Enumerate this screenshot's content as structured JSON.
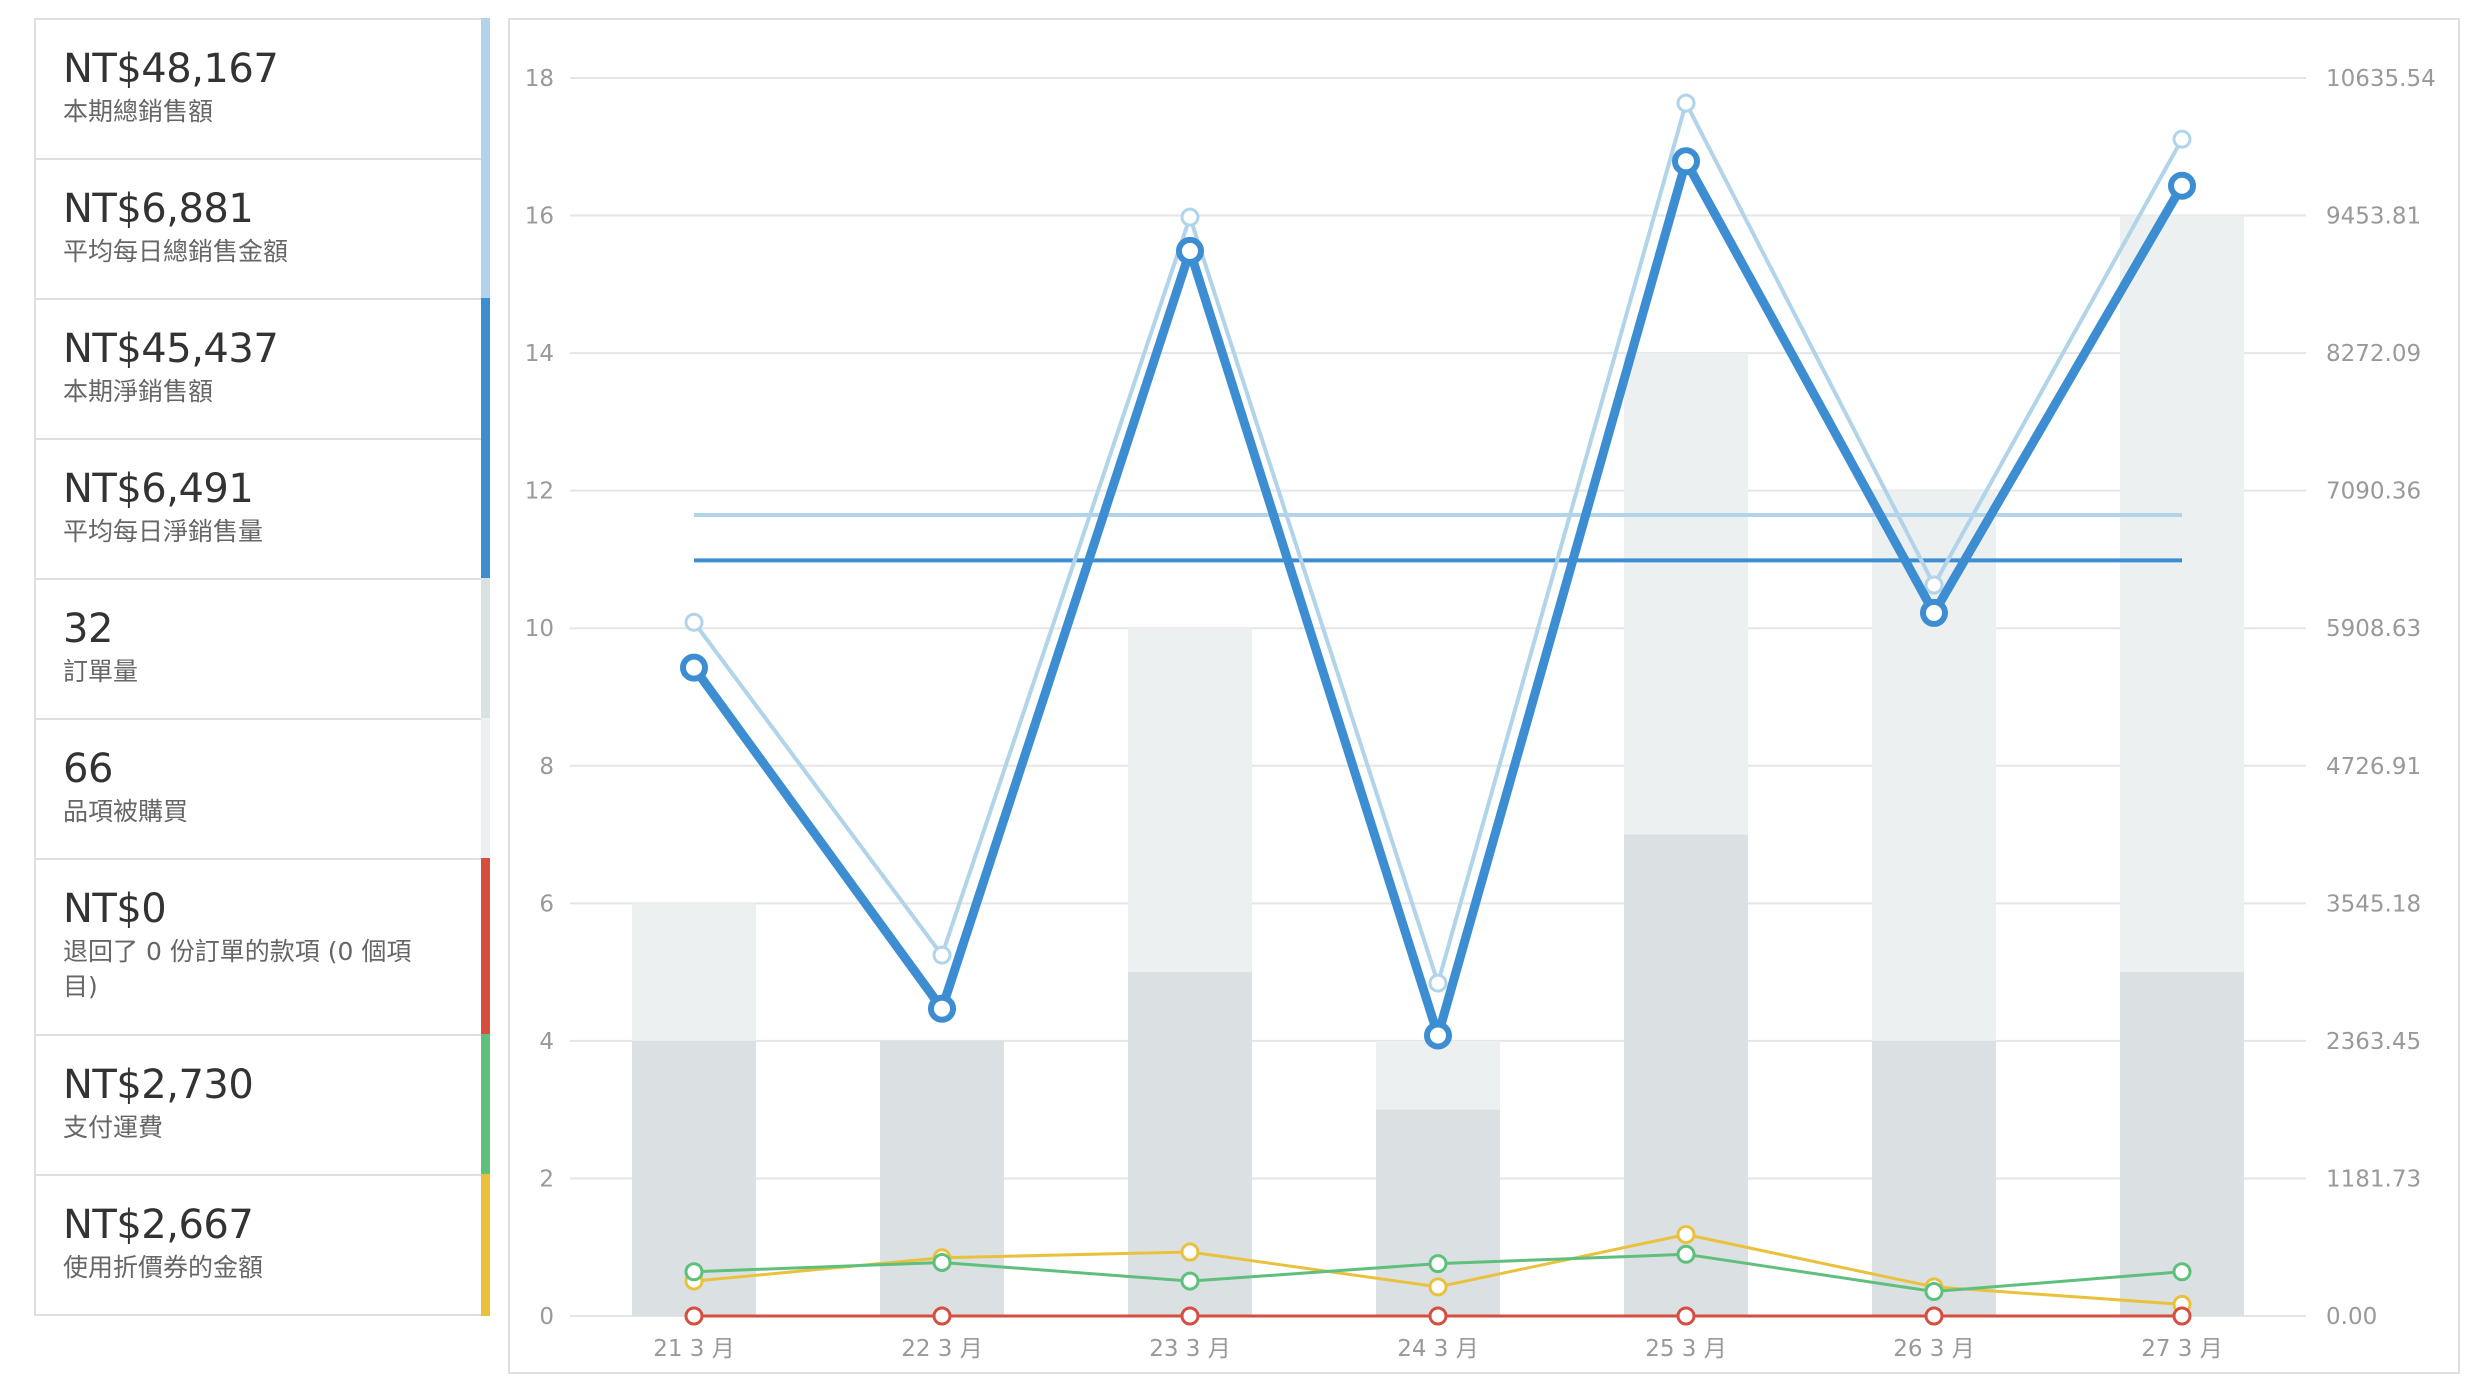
{
  "legend": [
    {
      "value": "NT$48,167",
      "label": "本期總銷售額",
      "color": "#b1d4ea"
    },
    {
      "value": "NT$6,881",
      "label": "平均每日總銷售金額",
      "color": "#b1d4ea"
    },
    {
      "value": "NT$45,437",
      "label": "本期淨銷售額",
      "color": "#3c8dd1"
    },
    {
      "value": "NT$6,491",
      "label": "平均每日淨銷售量",
      "color": "#3c8dd1"
    },
    {
      "value": "32",
      "label": "訂單量",
      "color": "#dbe1e3"
    },
    {
      "value": "66",
      "label": "品項被購買",
      "color": "#ecf0f1"
    },
    {
      "value": "NT$0",
      "label": "退回了 0 份訂單的款項 (0 個項目)",
      "color": "#d54e3e"
    },
    {
      "value": "NT$2,730",
      "label": "支付運費",
      "color": "#5fbf7c"
    },
    {
      "value": "NT$2,667",
      "label": "使用折價券的金額",
      "color": "#e9c13d"
    }
  ],
  "chart_data": {
    "type": "bar+line",
    "categories": [
      "21 3 月",
      "22 3 月",
      "23 3 月",
      "24 3 月",
      "25 3 月",
      "26 3 月",
      "27 3 月"
    ],
    "left_axis": {
      "ticks": [
        "0",
        "2",
        "4",
        "6",
        "8",
        "10",
        "12",
        "14",
        "16",
        "18"
      ],
      "range": [
        0,
        18
      ]
    },
    "right_axis": {
      "ticks": [
        "0.00",
        "1181.73",
        "2363.45",
        "3545.18",
        "4726.91",
        "5908.63",
        "7090.36",
        "8272.09",
        "9453.81",
        "10635.54"
      ],
      "range": [
        0,
        10635.54
      ]
    },
    "bars": [
      {
        "name": "品項被購買",
        "axis": "left",
        "color": "#ecf0f1",
        "values": [
          6,
          4,
          10,
          4,
          14,
          12,
          16
        ]
      },
      {
        "name": "訂單量",
        "axis": "left",
        "color": "#dbe1e3",
        "values": [
          4,
          4,
          5,
          3,
          7,
          4,
          5
        ]
      }
    ],
    "series": [
      {
        "name": "本期總銷售額",
        "axis": "right",
        "color": "#b1d4ea",
        "width": 4,
        "markerR": 8,
        "values": [
          5960,
          3100,
          9440,
          2860,
          10420,
          6280,
          10110
        ]
      },
      {
        "name": "本期淨銷售額",
        "axis": "right",
        "color": "#3c8dd1",
        "width": 9,
        "markerR": 11,
        "values": [
          5570,
          2640,
          9150,
          2410,
          9920,
          6040,
          9710
        ]
      },
      {
        "name": "使用折價券的金額",
        "axis": "right",
        "color": "#e9c13d",
        "width": 3,
        "markerR": 8,
        "values": [
          300,
          500,
          550,
          250,
          700,
          250,
          100
        ]
      },
      {
        "name": "支付運費",
        "axis": "right",
        "color": "#5fbf7c",
        "width": 3,
        "markerR": 8,
        "values": [
          380,
          460,
          300,
          450,
          530,
          210,
          380
        ]
      },
      {
        "name": "退回了 0 份訂單的款項 (0 個項目)",
        "axis": "right",
        "color": "#d54e3e",
        "width": 3,
        "markerR": 8,
        "values": [
          0,
          0,
          0,
          0,
          0,
          0,
          0
        ]
      }
    ],
    "averages": [
      {
        "name": "平均每日總銷售金額",
        "axis": "right",
        "color": "#b1d4ea",
        "value": 6881
      },
      {
        "name": "平均每日淨銷售量",
        "axis": "right",
        "color": "#3c8dd1",
        "value": 6491
      }
    ],
    "grid": true
  }
}
